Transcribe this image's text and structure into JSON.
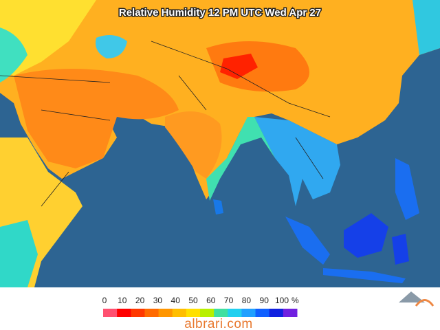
{
  "title": "Relative Humidity 12 PM UTC Wed Apr 27",
  "legend": {
    "ticks": [
      0,
      10,
      20,
      30,
      40,
      50,
      60,
      70,
      80,
      90,
      100
    ],
    "unit": "%",
    "colors": [
      "#ff5070",
      "#ff0000",
      "#ff3800",
      "#ff6a00",
      "#ff9600",
      "#ffbe00",
      "#ffe000",
      "#b8f000",
      "#40e0a0",
      "#20d0f0",
      "#20a0ff",
      "#1060ff",
      "#1020e0",
      "#7020e0"
    ]
  },
  "site": "albrari.com"
}
